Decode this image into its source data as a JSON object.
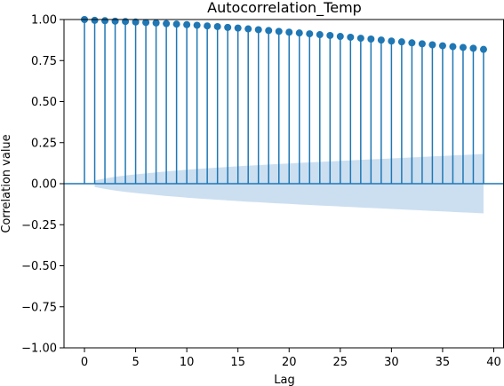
{
  "chart_data": {
    "type": "stem",
    "title": "Autocorrelation_Temp",
    "xlabel": "Lag",
    "ylabel": "Correlation value",
    "xlim": [
      -2,
      41
    ],
    "ylim": [
      -1.0,
      1.0
    ],
    "xticks": [
      0,
      5,
      10,
      15,
      20,
      25,
      30,
      35,
      40
    ],
    "yticks": [
      -1.0,
      -0.75,
      -0.5,
      -0.25,
      0.0,
      0.25,
      0.5,
      0.75,
      1.0
    ],
    "ytick_labels": [
      "−1.00",
      "−0.75",
      "−0.50",
      "−0.25",
      "0.00",
      "0.25",
      "0.50",
      "0.75",
      "1.00"
    ],
    "xtick_labels": [
      "0",
      "5",
      "10",
      "15",
      "20",
      "25",
      "30",
      "35",
      "40"
    ],
    "grid": false,
    "colors": {
      "stem": "#1f77b4",
      "confidence_band": "#c6dbef"
    },
    "series": [
      {
        "lags": [
          0,
          1,
          2,
          3,
          4,
          5,
          6,
          7,
          8,
          9,
          10,
          11,
          12,
          13,
          14,
          15,
          16,
          17,
          18,
          19,
          20,
          21,
          22,
          23,
          24,
          25,
          26,
          27,
          28,
          29,
          30,
          31,
          32,
          33,
          34,
          35,
          36,
          37,
          38,
          39
        ],
        "values": [
          1.0,
          0.995,
          0.993,
          0.99,
          0.988,
          0.985,
          0.982,
          0.979,
          0.975,
          0.972,
          0.969,
          0.965,
          0.961,
          0.957,
          0.952,
          0.948,
          0.943,
          0.938,
          0.933,
          0.928,
          0.923,
          0.918,
          0.913,
          0.908,
          0.903,
          0.897,
          0.892,
          0.886,
          0.881,
          0.875,
          0.869,
          0.864,
          0.858,
          0.852,
          0.846,
          0.84,
          0.835,
          0.83,
          0.825,
          0.818
        ]
      }
    ],
    "confidence_band": {
      "lags": [
        1,
        2,
        3,
        4,
        5,
        6,
        7,
        8,
        9,
        10,
        11,
        12,
        13,
        14,
        15,
        16,
        17,
        18,
        19,
        20,
        21,
        22,
        23,
        24,
        25,
        26,
        27,
        28,
        29,
        30,
        31,
        32,
        33,
        34,
        35,
        36,
        37,
        38,
        39
      ],
      "upper": [
        0.02,
        0.032,
        0.042,
        0.05,
        0.057,
        0.063,
        0.069,
        0.075,
        0.08,
        0.085,
        0.09,
        0.094,
        0.098,
        0.102,
        0.106,
        0.11,
        0.113,
        0.117,
        0.12,
        0.123,
        0.127,
        0.13,
        0.133,
        0.136,
        0.139,
        0.142,
        0.145,
        0.148,
        0.151,
        0.154,
        0.157,
        0.16,
        0.163,
        0.166,
        0.169,
        0.172,
        0.175,
        0.178,
        0.181
      ]
    }
  }
}
